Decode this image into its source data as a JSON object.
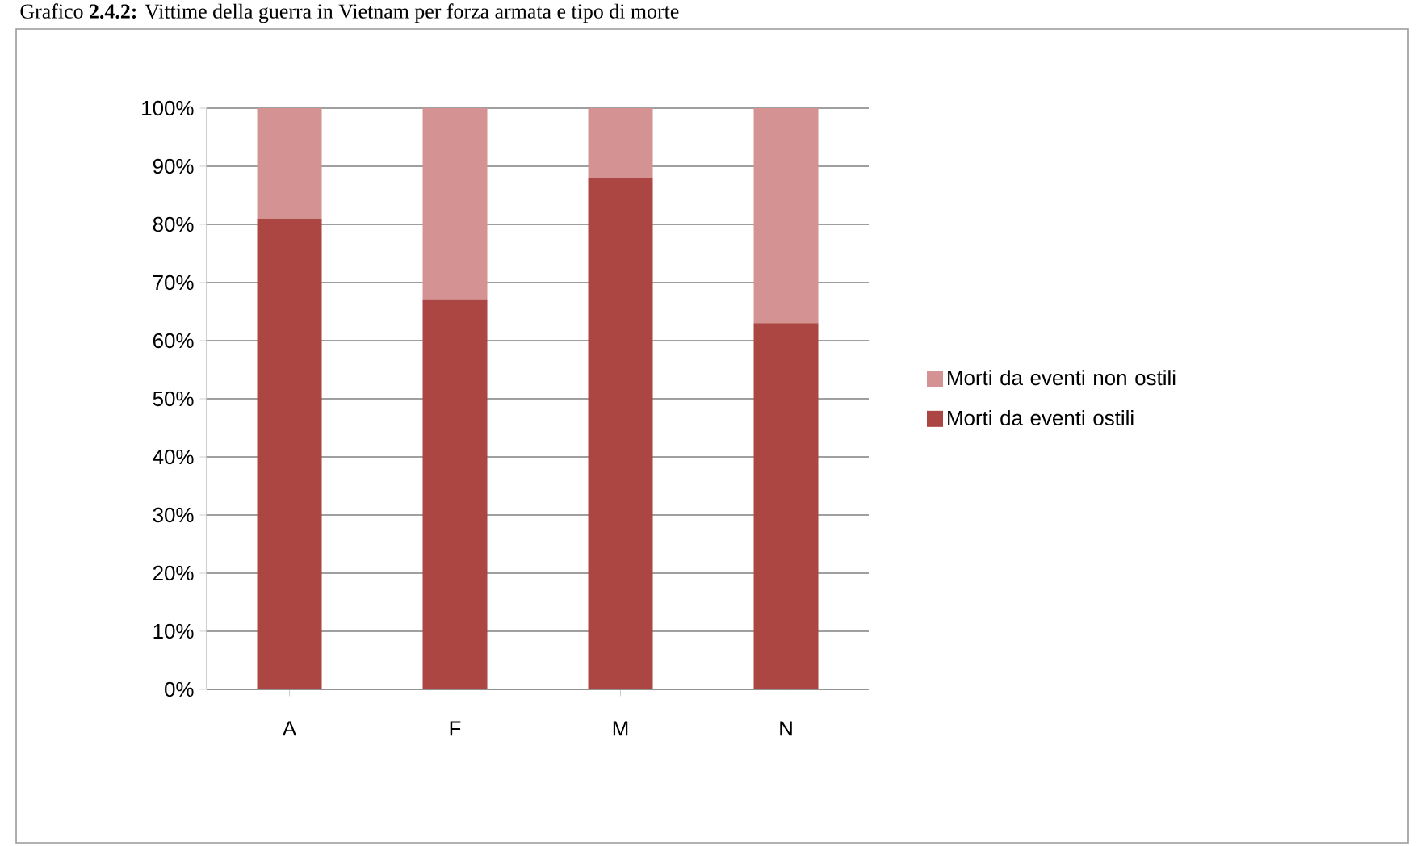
{
  "chart_data": {
    "type": "bar",
    "title": "Grafico **2.4.2:** Vittime della guerra in Vietnam per forza armata e tipo di morte",
    "categories": [
      "A",
      "F",
      "M",
      "N"
    ],
    "series": [
      {
        "name": "Morti da eventi ostili",
        "color": "#ab4642",
        "values": [
          81,
          67,
          88,
          63
        ]
      },
      {
        "name": "Morti da eventi non ostili",
        "color": "#d49392",
        "values": [
          19,
          33,
          12,
          37
        ]
      }
    ],
    "stacked": true,
    "ylim": [
      0,
      100
    ],
    "yticks": [
      {
        "value": 0,
        "label": "0%"
      },
      {
        "value": 10,
        "label": "10%"
      },
      {
        "value": 20,
        "label": "20%"
      },
      {
        "value": 30,
        "label": "30%"
      },
      {
        "value": 40,
        "label": "40%"
      },
      {
        "value": 50,
        "label": "50%"
      },
      {
        "value": 60,
        "label": "60%"
      },
      {
        "value": 70,
        "label": "70%"
      },
      {
        "value": 80,
        "label": "80%"
      },
      {
        "value": 90,
        "label": "90%"
      },
      {
        "value": 100,
        "label": "100%"
      }
    ],
    "grid": "y",
    "legend": "right"
  }
}
